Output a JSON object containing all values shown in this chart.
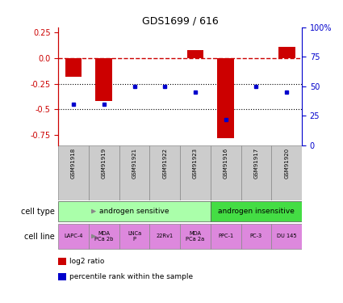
{
  "title": "GDS1699 / 616",
  "samples": [
    "GSM91918",
    "GSM91919",
    "GSM91921",
    "GSM91922",
    "GSM91923",
    "GSM91916",
    "GSM91917",
    "GSM91920"
  ],
  "log2_ratio": [
    -0.18,
    -0.42,
    0.0,
    0.0,
    0.08,
    -0.78,
    0.0,
    0.11
  ],
  "percentile_rank": [
    35,
    35,
    50,
    50,
    45,
    22,
    50,
    45
  ],
  "cell_type_groups": [
    {
      "label": "androgen sensitive",
      "start": 0,
      "end": 4,
      "color": "#aaffaa"
    },
    {
      "label": "androgen insensitive",
      "start": 5,
      "end": 7,
      "color": "#44dd44"
    }
  ],
  "cell_lines": [
    {
      "label": "LAPC-4",
      "col": 0
    },
    {
      "label": "MDA\nPCa 2b",
      "col": 1
    },
    {
      "label": "LNCa\nP",
      "col": 2
    },
    {
      "label": "22Rv1",
      "col": 3
    },
    {
      "label": "MDA\nPCa 2a",
      "col": 4
    },
    {
      "label": "PPC-1",
      "col": 5
    },
    {
      "label": "PC-3",
      "col": 6
    },
    {
      "label": "DU 145",
      "col": 7
    }
  ],
  "cell_line_color": "#dd88dd",
  "ylim_left": [
    -0.85,
    0.3
  ],
  "yticks_left": [
    0.25,
    0.0,
    -0.25,
    -0.5,
    -0.75
  ],
  "yticks_right_vals": [
    100,
    75,
    50,
    25,
    0
  ],
  "bar_color": "#cc0000",
  "dot_color": "#0000cc",
  "hline_color": "#cc0000",
  "sample_bg_color": "#cccccc",
  "background_color": "#ffffff",
  "bar_width": 0.55
}
